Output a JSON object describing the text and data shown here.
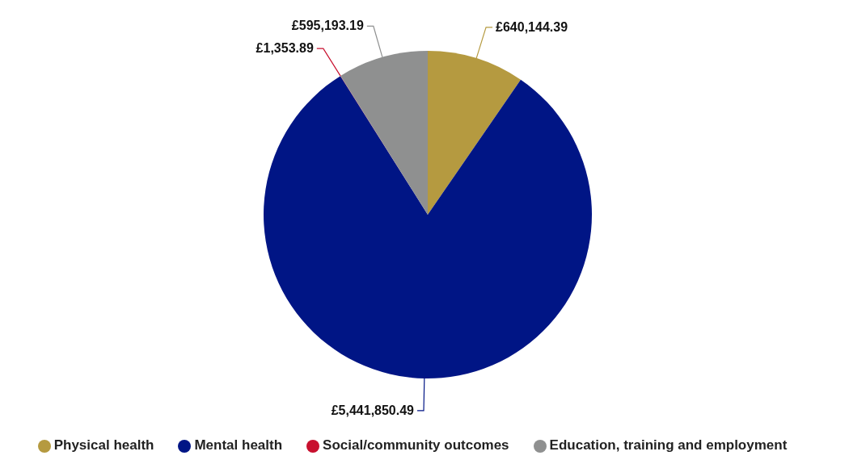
{
  "chart_data": {
    "type": "pie",
    "categories": [
      "Physical health",
      "Mental health",
      "Social/community outcomes",
      "Education, training and employment"
    ],
    "values": [
      640144.39,
      5441850.49,
      1353.89,
      595193.19
    ],
    "colors": [
      "#b59a40",
      "#001585",
      "#c8102e",
      "#8f9090"
    ],
    "value_labels": [
      "£640,144.39",
      "£5,441,850.49",
      "£1,353.89",
      "£595,193.19"
    ],
    "legend": "bottom"
  }
}
